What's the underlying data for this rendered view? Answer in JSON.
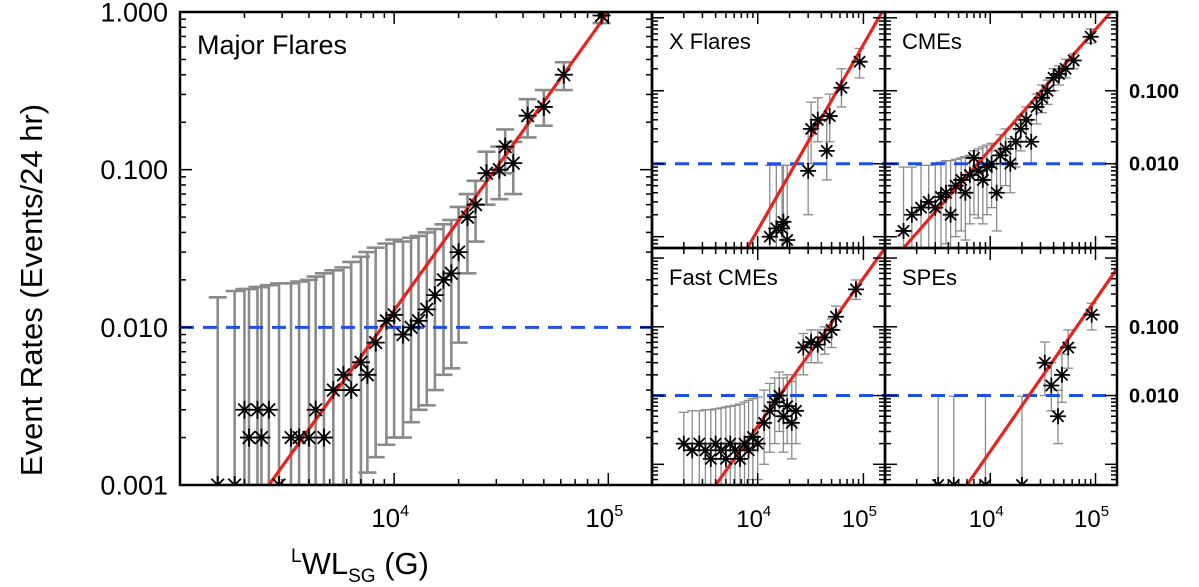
{
  "chart_data": [
    {
      "id": "major",
      "type": "scatter",
      "title": "Major Flares",
      "xscale": "log",
      "yscale": "log",
      "xlim": [
        1000,
        160000
      ],
      "ylim": [
        0.001,
        1.0
      ],
      "ytick_labels": [
        {
          "value": 1.0,
          "label": "1.000"
        },
        {
          "value": 0.1,
          "label": "0.100"
        },
        {
          "value": 0.01,
          "label": "0.010"
        },
        {
          "value": 0.001,
          "label": "0.001"
        }
      ],
      "xtick_labels": [
        {
          "value": 10000,
          "label": "10",
          "exp": "4"
        },
        {
          "value": 100000,
          "label": "10",
          "exp": "5"
        }
      ],
      "threshold": 0.01,
      "fit_line": [
        [
          2600,
          0.001
        ],
        [
          100000,
          1.0
        ]
      ],
      "points": [
        {
          "x": 1500,
          "y": 0.001,
          "lo": 0.001,
          "hi": 0.0155
        },
        {
          "x": 1800,
          "y": 0.001,
          "lo": 0.001,
          "hi": 0.017
        },
        {
          "x": 2000,
          "y": 0.003,
          "lo": 0.001,
          "hi": 0.0175
        },
        {
          "x": 2300,
          "y": 0.003,
          "lo": 0.001,
          "hi": 0.018
        },
        {
          "x": 2600,
          "y": 0.003,
          "lo": 0.001,
          "hi": 0.0185
        },
        {
          "x": 2100,
          "y": 0.002,
          "lo": 0.001,
          "hi": 0.0175
        },
        {
          "x": 2400,
          "y": 0.002,
          "lo": 0.001,
          "hi": 0.018
        },
        {
          "x": 2900,
          "y": 0.001,
          "lo": 0.001,
          "hi": 0.019
        },
        {
          "x": 3300,
          "y": 0.002,
          "lo": 0.001,
          "hi": 0.019
        },
        {
          "x": 3600,
          "y": 0.002,
          "lo": 0.001,
          "hi": 0.0195
        },
        {
          "x": 4000,
          "y": 0.002,
          "lo": 0.001,
          "hi": 0.02
        },
        {
          "x": 4300,
          "y": 0.003,
          "lo": 0.001,
          "hi": 0.021
        },
        {
          "x": 4700,
          "y": 0.002,
          "lo": 0.001,
          "hi": 0.022
        },
        {
          "x": 5200,
          "y": 0.004,
          "lo": 0.001,
          "hi": 0.023
        },
        {
          "x": 5800,
          "y": 0.005,
          "lo": 0.001,
          "hi": 0.024
        },
        {
          "x": 6300,
          "y": 0.004,
          "lo": 0.001,
          "hi": 0.026
        },
        {
          "x": 7000,
          "y": 0.006,
          "lo": 0.001,
          "hi": 0.028
        },
        {
          "x": 7500,
          "y": 0.005,
          "lo": 0.0012,
          "hi": 0.03
        },
        {
          "x": 8200,
          "y": 0.008,
          "lo": 0.0015,
          "hi": 0.032
        },
        {
          "x": 9200,
          "y": 0.011,
          "lo": 0.0018,
          "hi": 0.034
        },
        {
          "x": 10000,
          "y": 0.012,
          "lo": 0.002,
          "hi": 0.036
        },
        {
          "x": 11000,
          "y": 0.009,
          "lo": 0.002,
          "hi": 0.035
        },
        {
          "x": 12000,
          "y": 0.01,
          "lo": 0.0025,
          "hi": 0.037
        },
        {
          "x": 13000,
          "y": 0.011,
          "lo": 0.003,
          "hi": 0.038
        },
        {
          "x": 14200,
          "y": 0.013,
          "lo": 0.0032,
          "hi": 0.04
        },
        {
          "x": 15500,
          "y": 0.016,
          "lo": 0.004,
          "hi": 0.042
        },
        {
          "x": 17000,
          "y": 0.02,
          "lo": 0.005,
          "hi": 0.045
        },
        {
          "x": 18500,
          "y": 0.022,
          "lo": 0.0055,
          "hi": 0.048
        },
        {
          "x": 20000,
          "y": 0.03,
          "lo": 0.008,
          "hi": 0.058
        },
        {
          "x": 22000,
          "y": 0.05,
          "lo": 0.022,
          "hi": 0.07
        },
        {
          "x": 24000,
          "y": 0.06,
          "lo": 0.035,
          "hi": 0.085
        },
        {
          "x": 27000,
          "y": 0.095,
          "lo": 0.06,
          "hi": 0.13
        },
        {
          "x": 31000,
          "y": 0.1,
          "lo": 0.065,
          "hi": 0.14
        },
        {
          "x": 33000,
          "y": 0.14,
          "lo": 0.095,
          "hi": 0.18
        },
        {
          "x": 36000,
          "y": 0.11,
          "lo": 0.07,
          "hi": 0.15
        },
        {
          "x": 42000,
          "y": 0.22,
          "lo": 0.16,
          "hi": 0.28
        },
        {
          "x": 50000,
          "y": 0.25,
          "lo": 0.19,
          "hi": 0.32
        },
        {
          "x": 62000,
          "y": 0.4,
          "lo": 0.32,
          "hi": 0.48
        },
        {
          "x": 93000,
          "y": 0.95,
          "lo": 0.85,
          "hi": 1.0
        }
      ]
    },
    {
      "id": "xflares",
      "type": "scatter",
      "title": "X Flares",
      "xscale": "log",
      "yscale": "log",
      "xlim": [
        1000,
        160000
      ],
      "ylim": [
        0.0007,
        1.2
      ],
      "ytick_labels": [],
      "xtick_labels": [],
      "threshold": 0.01,
      "fit_line": [
        [
          8000,
          0.0007
        ],
        [
          150000,
          1.2
        ]
      ],
      "points": [
        {
          "x": 13000,
          "y": 0.001,
          "lo": 0.0007,
          "hi": 0.0095
        },
        {
          "x": 15000,
          "y": 0.0013,
          "lo": 0.0007,
          "hi": 0.0095
        },
        {
          "x": 17000,
          "y": 0.0013,
          "lo": 0.0007,
          "hi": 0.0095
        },
        {
          "x": 17500,
          "y": 0.0016,
          "lo": 0.0007,
          "hi": 0.0095
        },
        {
          "x": 19000,
          "y": 0.0009,
          "lo": 0.0007,
          "hi": 0.0095
        },
        {
          "x": 30000,
          "y": 0.008,
          "lo": 0.002,
          "hi": 0.03
        },
        {
          "x": 32000,
          "y": 0.03,
          "lo": 0.01,
          "hi": 0.07
        },
        {
          "x": 37000,
          "y": 0.04,
          "lo": 0.02,
          "hi": 0.08
        },
        {
          "x": 45000,
          "y": 0.015,
          "lo": 0.006,
          "hi": 0.04
        },
        {
          "x": 48000,
          "y": 0.045,
          "lo": 0.02,
          "hi": 0.09
        },
        {
          "x": 62000,
          "y": 0.11,
          "lo": 0.06,
          "hi": 0.2
        },
        {
          "x": 92000,
          "y": 0.25,
          "lo": 0.15,
          "hi": 0.38
        }
      ]
    },
    {
      "id": "cmes",
      "type": "scatter",
      "title": "CMEs",
      "xscale": "log",
      "yscale": "log",
      "xlim": [
        1000,
        160000
      ],
      "ylim": [
        0.0007,
        1.2
      ],
      "ytick_labels": [
        {
          "value": 0.1,
          "label": "0.100"
        },
        {
          "value": 0.01,
          "label": "0.010"
        }
      ],
      "xtick_labels": [],
      "threshold": 0.01,
      "fit_line": [
        [
          1500,
          0.0007
        ],
        [
          140000,
          1.2
        ]
      ],
      "points": [
        {
          "x": 1500,
          "y": 0.0012,
          "lo": 0.0007,
          "hi": 0.009
        },
        {
          "x": 1800,
          "y": 0.002,
          "lo": 0.0007,
          "hi": 0.009
        },
        {
          "x": 2200,
          "y": 0.0025,
          "lo": 0.0007,
          "hi": 0.0095
        },
        {
          "x": 2600,
          "y": 0.003,
          "lo": 0.0007,
          "hi": 0.0095
        },
        {
          "x": 3000,
          "y": 0.0025,
          "lo": 0.0007,
          "hi": 0.01
        },
        {
          "x": 3400,
          "y": 0.0035,
          "lo": 0.0007,
          "hi": 0.0105
        },
        {
          "x": 3800,
          "y": 0.004,
          "lo": 0.0008,
          "hi": 0.011
        },
        {
          "x": 4200,
          "y": 0.002,
          "lo": 0.0007,
          "hi": 0.011
        },
        {
          "x": 4700,
          "y": 0.005,
          "lo": 0.001,
          "hi": 0.0115
        },
        {
          "x": 5300,
          "y": 0.006,
          "lo": 0.0012,
          "hi": 0.012
        },
        {
          "x": 5800,
          "y": 0.004,
          "lo": 0.0009,
          "hi": 0.0125
        },
        {
          "x": 6400,
          "y": 0.007,
          "lo": 0.0015,
          "hi": 0.013
        },
        {
          "x": 7000,
          "y": 0.012,
          "lo": 0.002,
          "hi": 0.015
        },
        {
          "x": 7700,
          "y": 0.008,
          "lo": 0.0018,
          "hi": 0.016
        },
        {
          "x": 8500,
          "y": 0.006,
          "lo": 0.0015,
          "hi": 0.017
        },
        {
          "x": 9300,
          "y": 0.009,
          "lo": 0.002,
          "hi": 0.018
        },
        {
          "x": 10300,
          "y": 0.01,
          "lo": 0.0025,
          "hi": 0.019
        },
        {
          "x": 11500,
          "y": 0.004,
          "lo": 0.0012,
          "hi": 0.015
        },
        {
          "x": 12500,
          "y": 0.013,
          "lo": 0.004,
          "hi": 0.025
        },
        {
          "x": 14000,
          "y": 0.016,
          "lo": 0.005,
          "hi": 0.03
        },
        {
          "x": 15500,
          "y": 0.01,
          "lo": 0.004,
          "hi": 0.022
        },
        {
          "x": 17500,
          "y": 0.02,
          "lo": 0.009,
          "hi": 0.035
        },
        {
          "x": 19500,
          "y": 0.03,
          "lo": 0.015,
          "hi": 0.045
        },
        {
          "x": 22000,
          "y": 0.04,
          "lo": 0.02,
          "hi": 0.06
        },
        {
          "x": 24500,
          "y": 0.02,
          "lo": 0.01,
          "hi": 0.04
        },
        {
          "x": 27500,
          "y": 0.06,
          "lo": 0.035,
          "hi": 0.09
        },
        {
          "x": 31000,
          "y": 0.08,
          "lo": 0.05,
          "hi": 0.12
        },
        {
          "x": 35000,
          "y": 0.1,
          "lo": 0.065,
          "hi": 0.14
        },
        {
          "x": 40000,
          "y": 0.15,
          "lo": 0.1,
          "hi": 0.2
        },
        {
          "x": 45000,
          "y": 0.17,
          "lo": 0.12,
          "hi": 0.22
        },
        {
          "x": 52000,
          "y": 0.2,
          "lo": 0.15,
          "hi": 0.27
        },
        {
          "x": 62000,
          "y": 0.26,
          "lo": 0.2,
          "hi": 0.32
        },
        {
          "x": 90000,
          "y": 0.55,
          "lo": 0.45,
          "hi": 0.7
        }
      ]
    },
    {
      "id": "fastcmes",
      "type": "scatter",
      "title": "Fast CMEs",
      "xscale": "log",
      "yscale": "log",
      "xlim": [
        1000,
        160000
      ],
      "ylim": [
        0.0005,
        1.4
      ],
      "ytick_labels": [],
      "xtick_labels": [
        {
          "value": 10000,
          "label": "10",
          "exp": "4"
        },
        {
          "value": 100000,
          "label": "10",
          "exp": "5"
        }
      ],
      "threshold": 0.01,
      "fit_line": [
        [
          4000,
          0.0005
        ],
        [
          160000,
          1.4
        ]
      ],
      "points": [
        {
          "x": 2000,
          "y": 0.002,
          "lo": 0.0005,
          "hi": 0.0057
        },
        {
          "x": 2400,
          "y": 0.0016,
          "lo": 0.0005,
          "hi": 0.006
        },
        {
          "x": 2800,
          "y": 0.002,
          "lo": 0.0005,
          "hi": 0.006
        },
        {
          "x": 3200,
          "y": 0.0016,
          "lo": 0.0005,
          "hi": 0.0062
        },
        {
          "x": 3600,
          "y": 0.0012,
          "lo": 0.0005,
          "hi": 0.0062
        },
        {
          "x": 4000,
          "y": 0.002,
          "lo": 0.0005,
          "hi": 0.0064
        },
        {
          "x": 4500,
          "y": 0.0016,
          "lo": 0.0005,
          "hi": 0.0066
        },
        {
          "x": 5000,
          "y": 0.0012,
          "lo": 0.0005,
          "hi": 0.0068
        },
        {
          "x": 5500,
          "y": 0.002,
          "lo": 0.0005,
          "hi": 0.007
        },
        {
          "x": 6100,
          "y": 0.0016,
          "lo": 0.0005,
          "hi": 0.0072
        },
        {
          "x": 6800,
          "y": 0.0012,
          "lo": 0.0005,
          "hi": 0.0075
        },
        {
          "x": 7500,
          "y": 0.002,
          "lo": 0.0005,
          "hi": 0.008
        },
        {
          "x": 8200,
          "y": 0.0016,
          "lo": 0.0005,
          "hi": 0.0085
        },
        {
          "x": 9000,
          "y": 0.0025,
          "lo": 0.0006,
          "hi": 0.009
        },
        {
          "x": 10000,
          "y": 0.002,
          "lo": 0.0006,
          "hi": 0.0095
        },
        {
          "x": 11500,
          "y": 0.004,
          "lo": 0.001,
          "hi": 0.012
        },
        {
          "x": 13000,
          "y": 0.006,
          "lo": 0.0015,
          "hi": 0.015
        },
        {
          "x": 14500,
          "y": 0.008,
          "lo": 0.002,
          "hi": 0.018
        },
        {
          "x": 16000,
          "y": 0.01,
          "lo": 0.003,
          "hi": 0.022
        },
        {
          "x": 17500,
          "y": 0.005,
          "lo": 0.0015,
          "hi": 0.018
        },
        {
          "x": 19000,
          "y": 0.007,
          "lo": 0.002,
          "hi": 0.02
        },
        {
          "x": 21000,
          "y": 0.004,
          "lo": 0.0012,
          "hi": 0.016
        },
        {
          "x": 23000,
          "y": 0.006,
          "lo": 0.002,
          "hi": 0.02
        },
        {
          "x": 27000,
          "y": 0.05,
          "lo": 0.02,
          "hi": 0.08
        },
        {
          "x": 32000,
          "y": 0.06,
          "lo": 0.03,
          "hi": 0.09
        },
        {
          "x": 37000,
          "y": 0.055,
          "lo": 0.03,
          "hi": 0.09
        },
        {
          "x": 43000,
          "y": 0.07,
          "lo": 0.04,
          "hi": 0.1
        },
        {
          "x": 50000,
          "y": 0.09,
          "lo": 0.05,
          "hi": 0.13
        },
        {
          "x": 55000,
          "y": 0.14,
          "lo": 0.09,
          "hi": 0.2
        },
        {
          "x": 85000,
          "y": 0.35,
          "lo": 0.25,
          "hi": 0.48
        }
      ]
    },
    {
      "id": "spes",
      "type": "scatter",
      "title": "SPEs",
      "xscale": "log",
      "yscale": "log",
      "xlim": [
        1000,
        160000
      ],
      "ylim": [
        0.0005,
        1.4
      ],
      "ytick_labels": [
        {
          "value": 0.1,
          "label": "0.100"
        },
        {
          "value": 0.01,
          "label": "0.010"
        }
      ],
      "xtick_labels": [
        {
          "value": 10000,
          "label": "10",
          "exp": "4"
        },
        {
          "value": 100000,
          "label": "10",
          "exp": "5"
        }
      ],
      "threshold": 0.01,
      "fit_line": [
        [
          6000,
          0.0005
        ],
        [
          160000,
          0.7
        ]
      ],
      "points": [
        {
          "x": 3200,
          "y": 0.0005,
          "lo": 0.0005,
          "hi": 0.0098
        },
        {
          "x": 4500,
          "y": 0.0005,
          "lo": 0.0005,
          "hi": 0.0098
        },
        {
          "x": 9000,
          "y": 0.0005,
          "lo": 0.0005,
          "hi": 0.0098
        },
        {
          "x": 20000,
          "y": 0.0005,
          "lo": 0.0005,
          "hi": 0.0098
        },
        {
          "x": 33000,
          "y": 0.03,
          "lo": 0.01,
          "hi": 0.06
        },
        {
          "x": 38000,
          "y": 0.014,
          "lo": 0.006,
          "hi": 0.03
        },
        {
          "x": 44000,
          "y": 0.005,
          "lo": 0.002,
          "hi": 0.012
        },
        {
          "x": 48000,
          "y": 0.02,
          "lo": 0.008,
          "hi": 0.04
        },
        {
          "x": 55000,
          "y": 0.05,
          "lo": 0.025,
          "hi": 0.09
        },
        {
          "x": 92000,
          "y": 0.15,
          "lo": 0.09,
          "hi": 0.22
        }
      ]
    }
  ],
  "ylabel": "Event Rates (Events/24 hr)",
  "xlabel": {
    "pre": "L",
    "main": "WL",
    "sub": "SG",
    "post": " (G)"
  },
  "colors": {
    "fit": "#e8231c",
    "threshold": "#1f4fe8",
    "errorbar": "#8a8a8a",
    "marker": "#000000",
    "axis": "#000000"
  }
}
